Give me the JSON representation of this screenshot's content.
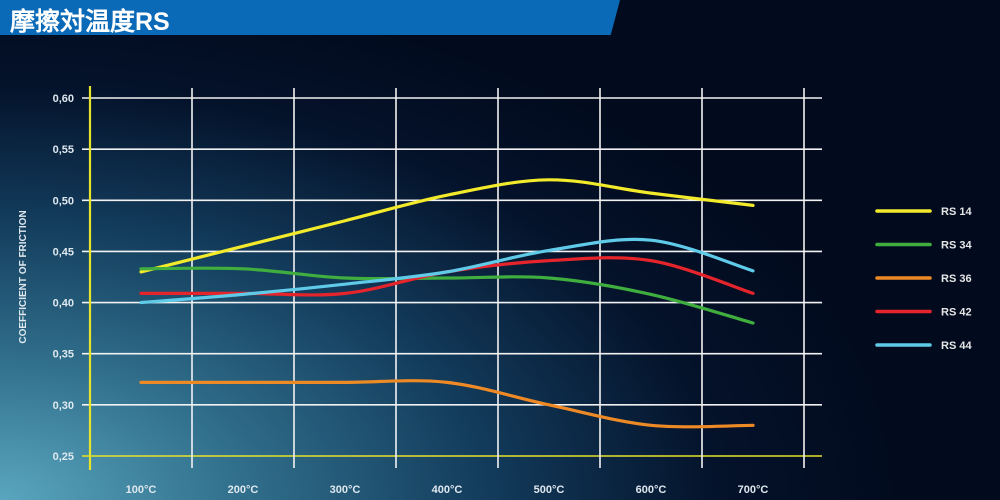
{
  "title": "摩擦対温度RS",
  "chart_data": {
    "type": "line",
    "title": "摩擦対温度RS",
    "xlabel": "",
    "ylabel": "COEFFICIENT OF FRICTION",
    "categories": [
      "100°C",
      "200°C",
      "300°C",
      "400°C",
      "500°C",
      "600°C",
      "700°C"
    ],
    "yticks": [
      "0,60",
      "0,55",
      "0,50",
      "0,45",
      "0,40",
      "0,35",
      "0,30",
      "0,25"
    ],
    "ylim": [
      0.25,
      0.6
    ],
    "grid": true,
    "legend_position": "right",
    "series": [
      {
        "name": "RS 14",
        "color": "#f2ea2a",
        "values": [
          0.43,
          0.455,
          0.48,
          0.505,
          0.52,
          0.507,
          0.495
        ]
      },
      {
        "name": "RS 34",
        "color": "#3fae3f",
        "values": [
          0.433,
          0.433,
          0.424,
          0.424,
          0.424,
          0.408,
          0.38
        ]
      },
      {
        "name": "RS 36",
        "color": "#ee8a25",
        "values": [
          0.322,
          0.322,
          0.322,
          0.322,
          0.3,
          0.28,
          0.28
        ]
      },
      {
        "name": "RS 42",
        "color": "#e5242b",
        "values": [
          0.409,
          0.409,
          0.409,
          0.43,
          0.441,
          0.441,
          0.409
        ]
      },
      {
        "name": "RS 44",
        "color": "#5fcbe8",
        "values": [
          0.4,
          0.408,
          0.418,
          0.43,
          0.451,
          0.461,
          0.431
        ]
      }
    ]
  }
}
